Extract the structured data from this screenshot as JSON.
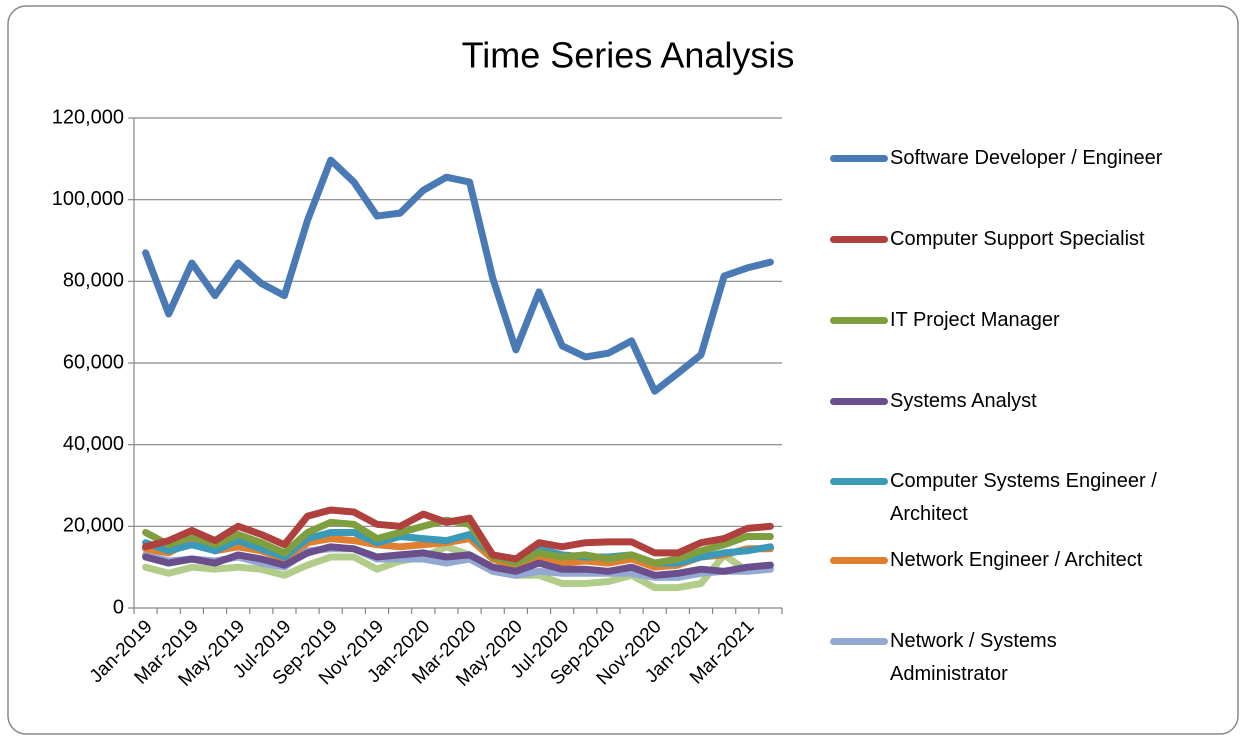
{
  "chart_data": {
    "type": "line",
    "title": "Time Series Analysis",
    "categories": [
      "Jan-2019",
      null,
      "Mar-2019",
      null,
      "May-2019",
      null,
      "Jul-2019",
      null,
      "Sep-2019",
      null,
      "Nov-2019",
      null,
      "Jan-2020",
      null,
      "Mar-2020",
      null,
      "May-2020",
      null,
      "Jul-2020",
      null,
      "Sep-2020",
      null,
      "Nov-2020",
      null,
      "Jan-2021",
      null,
      "Mar-2021",
      null
    ],
    "ylim": [
      0,
      120000
    ],
    "yticks": [
      0,
      {
        "value": 20000,
        "label": "20,000"
      },
      {
        "value": 40000,
        "label": "40,000"
      },
      {
        "value": 60000,
        "label": "60,000"
      },
      {
        "value": 80000,
        "label": "80,000"
      },
      {
        "value": 100000,
        "label": "100,000"
      },
      {
        "value": 120000,
        "label": "120,000"
      }
    ],
    "grid": true,
    "series": [
      {
        "name": "Software Developer / Engineer",
        "color": "#4a7ab5",
        "values": [
          87000,
          72000,
          84500,
          76500,
          84500,
          79500,
          76500,
          95000,
          109700,
          104300,
          96000,
          96700,
          102300,
          105500,
          104300,
          80800,
          63200,
          77400,
          64200,
          61500,
          62400,
          65400,
          53100,
          57500,
          62000,
          81300,
          83300,
          84700
        ]
      },
      {
        "name": "Computer Support Specialist",
        "color": "#b0403e",
        "values": [
          15000,
          16500,
          19000,
          16500,
          20000,
          18000,
          15500,
          22500,
          24000,
          23500,
          20500,
          20000,
          23000,
          21000,
          22000,
          13000,
          12000,
          16000,
          15000,
          16000,
          16200,
          16200,
          13500,
          13500,
          16000,
          17000,
          19500,
          20000
        ]
      },
      {
        "name": "IT Project Manager",
        "color": "#7f9f3e",
        "values": [
          18500,
          15500,
          17500,
          15500,
          18000,
          16000,
          13500,
          18500,
          21000,
          20500,
          17000,
          18500,
          20000,
          21500,
          20500,
          12500,
          11000,
          13500,
          12500,
          13000,
          12000,
          13000,
          11000,
          12000,
          14000,
          15500,
          17500,
          17500
        ]
      },
      {
        "name": "Systems Analyst",
        "color": "#6a4f8c",
        "values": [
          12500,
          11000,
          12000,
          11000,
          13000,
          12000,
          10500,
          13500,
          15000,
          14500,
          12500,
          13000,
          13500,
          12500,
          13000,
          10000,
          9000,
          11000,
          9500,
          9500,
          9000,
          10000,
          8000,
          8500,
          9500,
          9000,
          10000,
          10500
        ]
      },
      {
        "name": "Computer Systems Engineer / Architect",
        "color": "#3a9ab8",
        "values": [
          16000,
          14000,
          15500,
          14000,
          16500,
          14500,
          12500,
          17000,
          18500,
          18500,
          16000,
          17500,
          17000,
          16500,
          18000,
          13000,
          12000,
          14500,
          13000,
          12500,
          12500,
          13000,
          11000,
          11000,
          12500,
          13500,
          14000,
          15000
        ]
      },
      {
        "name": "Network Engineer / Architect",
        "color": "#e07f30",
        "values": [
          14500,
          13500,
          16500,
          14000,
          15000,
          14000,
          12000,
          16000,
          17000,
          16500,
          15500,
          15000,
          15500,
          16000,
          17000,
          12000,
          10000,
          12000,
          11000,
          11500,
          11000,
          12000,
          10000,
          10500,
          12500,
          13000,
          14500,
          14500
        ]
      },
      {
        "name": "Network / Systems Administrator",
        "color": "#93a9d2",
        "values": [
          13000,
          11500,
          12000,
          11500,
          12500,
          11000,
          10000,
          14000,
          14500,
          14500,
          12000,
          12000,
          12000,
          11000,
          12000,
          9000,
          8000,
          9000,
          8500,
          8500,
          8500,
          8500,
          7500,
          7500,
          8500,
          9000,
          9000,
          9500
        ]
      },
      {
        "color": "#b2cc8a",
        "values": [
          10000,
          8500,
          10000,
          9500,
          10000,
          9500,
          8000,
          10500,
          12500,
          12500,
          9500,
          11500,
          12500,
          15000,
          13000,
          9000,
          8000,
          8000,
          6000,
          6000,
          6500,
          8000,
          5000,
          5000,
          6000,
          13000,
          9000,
          9500
        ]
      }
    ]
  }
}
